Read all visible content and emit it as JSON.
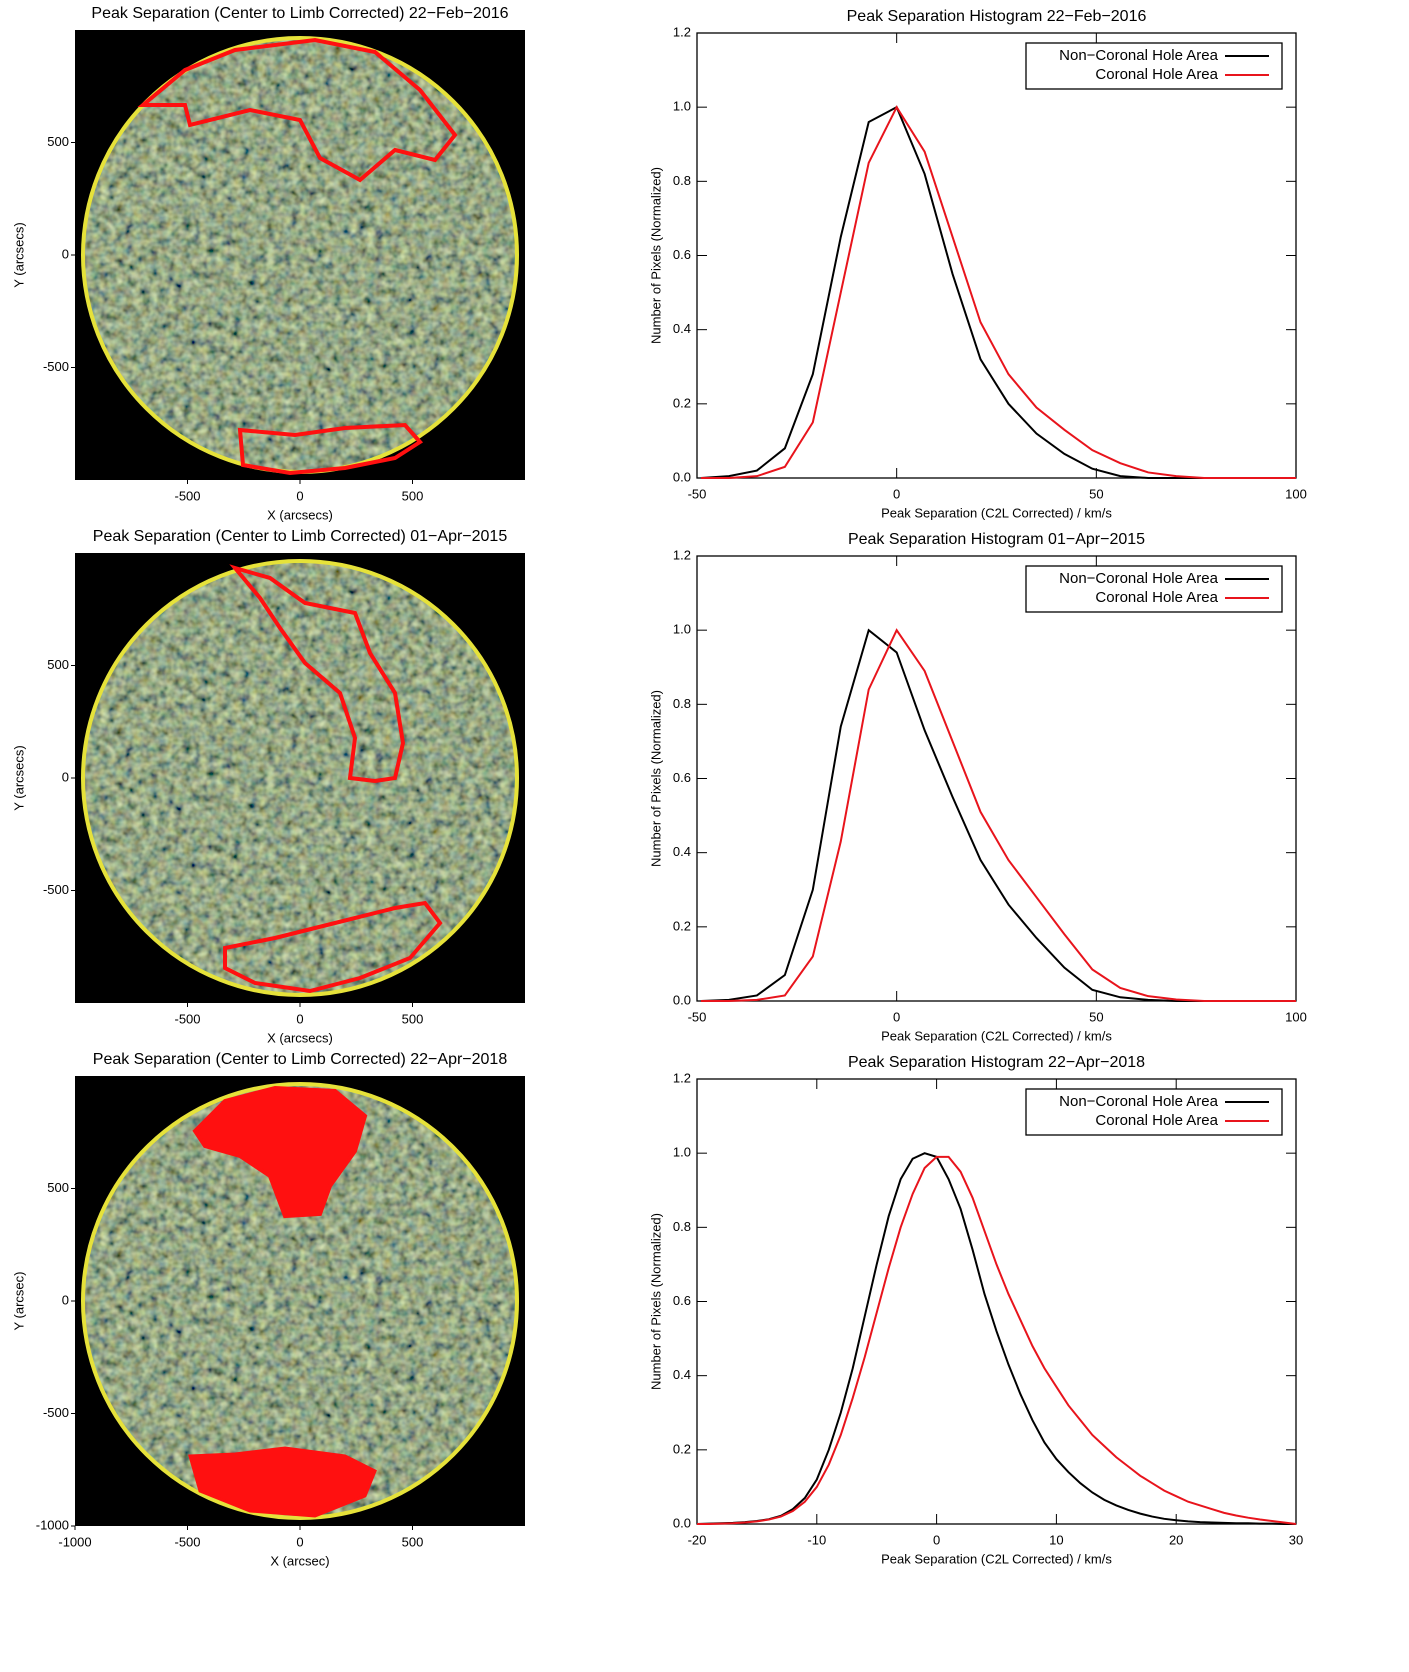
{
  "chart_data": [
    {
      "type": "image",
      "title": "Peak Separation (Center to Limb Corrected) 22−Feb−2016",
      "xlabel": "X (arcsecs)",
      "ylabel": "Y (arcsecs)",
      "xlim": [
        -1000,
        1000
      ],
      "ylim": [
        -1000,
        1000
      ],
      "xticks": [
        -500,
        0,
        500
      ],
      "yticks": [
        -500,
        0,
        500
      ]
    },
    {
      "type": "line",
      "title": "Peak Separation Histogram 22−Feb−2016",
      "xlabel": "Peak Separation (C2L Corrected) / km/s",
      "ylabel": "Number of Pixels (Normalized)",
      "x": [
        -49,
        -42,
        -35,
        -28,
        -21,
        -14,
        -7,
        0,
        7,
        14,
        21,
        28,
        35,
        42,
        49,
        56,
        63,
        70,
        77,
        84,
        91,
        100
      ],
      "series": [
        {
          "name": "Non−Coronal Hole Area",
          "color": "#000000",
          "values": [
            0,
            0.005,
            0.02,
            0.08,
            0.28,
            0.65,
            0.96,
            1.0,
            0.82,
            0.55,
            0.32,
            0.2,
            0.12,
            0.065,
            0.025,
            0.005,
            0,
            0,
            0,
            0,
            0,
            0
          ]
        },
        {
          "name": "Coronal Hole Area",
          "color": "#e8141c",
          "values": [
            0,
            0,
            0.005,
            0.03,
            0.15,
            0.5,
            0.85,
            1.0,
            0.88,
            0.65,
            0.42,
            0.28,
            0.19,
            0.13,
            0.075,
            0.04,
            0.015,
            0.005,
            0,
            0,
            0,
            0
          ]
        }
      ],
      "xlim": [
        -50,
        100
      ],
      "ylim": [
        0,
        1.2
      ],
      "xticks": [
        -50,
        0,
        50,
        100
      ],
      "yticks": [
        {
          "value": 0,
          "label": "0.0"
        },
        0.2,
        0.4,
        0.6,
        0.8,
        {
          "value": 1,
          "label": "1.0"
        },
        1.2
      ],
      "legend": "upper right"
    },
    {
      "type": "image",
      "title": "Peak Separation (Center to Limb Corrected) 01−Apr−2015",
      "xlabel": "X (arcsecs)",
      "ylabel": "Y (arcsecs)",
      "xlim": [
        -1000,
        1000
      ],
      "ylim": [
        -1000,
        1000
      ],
      "xticks": [
        -500,
        0,
        500
      ],
      "yticks": [
        -500,
        0,
        500
      ]
    },
    {
      "type": "line",
      "title": "Peak Separation Histogram 01−Apr−2015",
      "xlabel": "Peak Separation (C2L Corrected) / km/s",
      "ylabel": "Number of Pixels (Normalized)",
      "x": [
        -49,
        -42,
        -35,
        -28,
        -21,
        -14,
        -7,
        0,
        7,
        14,
        21,
        28,
        35,
        42,
        49,
        56,
        63,
        70,
        77,
        84,
        91,
        100
      ],
      "series": [
        {
          "name": "Non−Coronal Hole Area",
          "color": "#000000",
          "values": [
            0,
            0.003,
            0.015,
            0.07,
            0.3,
            0.74,
            1.0,
            0.94,
            0.73,
            0.55,
            0.38,
            0.26,
            0.17,
            0.09,
            0.03,
            0.01,
            0.003,
            0,
            0,
            0,
            0,
            0
          ]
        },
        {
          "name": "Coronal Hole Area",
          "color": "#e8141c",
          "values": [
            0,
            0,
            0.003,
            0.015,
            0.12,
            0.43,
            0.84,
            1.0,
            0.89,
            0.7,
            0.51,
            0.38,
            0.28,
            0.18,
            0.085,
            0.035,
            0.013,
            0.004,
            0,
            0,
            0,
            0
          ]
        }
      ],
      "xlim": [
        -50,
        100
      ],
      "ylim": [
        0,
        1.2
      ],
      "xticks": [
        -50,
        0,
        50,
        100
      ],
      "yticks": [
        {
          "value": 0,
          "label": "0.0"
        },
        0.2,
        0.4,
        0.6,
        0.8,
        {
          "value": 1,
          "label": "1.0"
        },
        1.2
      ],
      "legend": "upper right"
    },
    {
      "type": "image",
      "title": "Peak Separation (Center to Limb Corrected) 22−Apr−2018",
      "xlabel": "X (arcsec)",
      "ylabel": "Y (arcsec)",
      "xlim": [
        -1000,
        1000
      ],
      "ylim": [
        -1000,
        1000
      ],
      "xticks": [
        -1000,
        -500,
        0,
        500
      ],
      "yticks": [
        -1000,
        -500,
        0,
        500
      ]
    },
    {
      "type": "line",
      "title": "Peak Separation Histogram 22−Apr−2018",
      "xlabel": "Peak Separation (C2L Corrected) / km/s",
      "ylabel": "Number of Pixels (Normalized)",
      "x": [
        -20,
        -19,
        -18,
        -17,
        -16,
        -15,
        -14,
        -13,
        -12,
        -11,
        -10,
        -9,
        -8,
        -7,
        -6,
        -5,
        -4,
        -3,
        -2,
        -1,
        0,
        1,
        2,
        3,
        4,
        5,
        6,
        7,
        8,
        9,
        10,
        11,
        12,
        13,
        14,
        15,
        16,
        17,
        18,
        19,
        20,
        21,
        22,
        23,
        24,
        25,
        26,
        27,
        28,
        29,
        30
      ],
      "series": [
        {
          "name": "Non−Coronal Hole Area",
          "color": "#000000",
          "values": [
            0,
            0.001,
            0.002,
            0.003,
            0.005,
            0.008,
            0.013,
            0.022,
            0.04,
            0.07,
            0.12,
            0.2,
            0.3,
            0.42,
            0.56,
            0.7,
            0.83,
            0.93,
            0.985,
            1.0,
            0.99,
            0.93,
            0.85,
            0.74,
            0.62,
            0.52,
            0.43,
            0.35,
            0.28,
            0.22,
            0.175,
            0.14,
            0.11,
            0.085,
            0.065,
            0.05,
            0.038,
            0.028,
            0.02,
            0.014,
            0.01,
            0.007,
            0.005,
            0.004,
            0.003,
            0.002,
            0.002,
            0.001,
            0.001,
            0,
            0
          ]
        },
        {
          "name": "Coronal Hole Area",
          "color": "#e8141c",
          "values": [
            0,
            0,
            0.001,
            0.002,
            0.004,
            0.007,
            0.012,
            0.02,
            0.035,
            0.06,
            0.1,
            0.16,
            0.24,
            0.34,
            0.45,
            0.57,
            0.69,
            0.8,
            0.89,
            0.96,
            0.99,
            0.99,
            0.95,
            0.88,
            0.79,
            0.7,
            0.62,
            0.55,
            0.48,
            0.42,
            0.37,
            0.32,
            0.28,
            0.24,
            0.21,
            0.18,
            0.155,
            0.13,
            0.11,
            0.09,
            0.075,
            0.06,
            0.05,
            0.04,
            0.03,
            0.023,
            0.017,
            0.012,
            0.008,
            0.004,
            0
          ]
        }
      ],
      "xlim": [
        -20,
        30
      ],
      "ylim": [
        0,
        1.2
      ],
      "xticks": [
        -20,
        -10,
        0,
        10,
        20,
        30
      ],
      "yticks": [
        {
          "value": 0,
          "label": "0.0"
        },
        0.2,
        0.4,
        0.6,
        0.8,
        {
          "value": 1,
          "label": "1.0"
        },
        1.2
      ],
      "legend": "upper right"
    }
  ]
}
